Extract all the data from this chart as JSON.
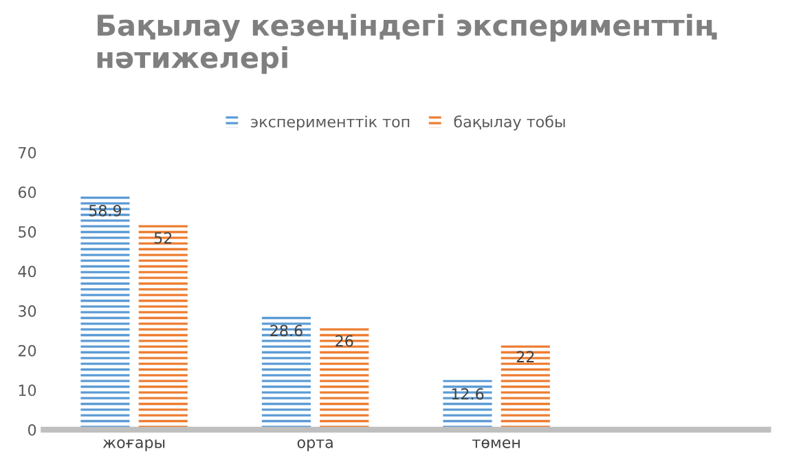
{
  "chart_data": {
    "type": "bar",
    "title": "Бақылау кезеңіндегі эксперименттің\nнәтижелері",
    "categories": [
      "жоғары",
      "орта",
      "төмен",
      null
    ],
    "series": [
      {
        "name": "эксперименттік топ",
        "color": "#5b9bd5",
        "values": [
          58.9,
          28.6,
          12.6,
          null
        ]
      },
      {
        "name": "бақылау тобы",
        "color": "#ed7d31",
        "values": [
          52,
          26,
          22,
          null
        ]
      }
    ],
    "ylim": [
      0,
      70
    ],
    "yticks": [
      0,
      10,
      20,
      30,
      40,
      50,
      60,
      70
    ],
    "grid": false,
    "legend": "top",
    "data_labels": true
  }
}
